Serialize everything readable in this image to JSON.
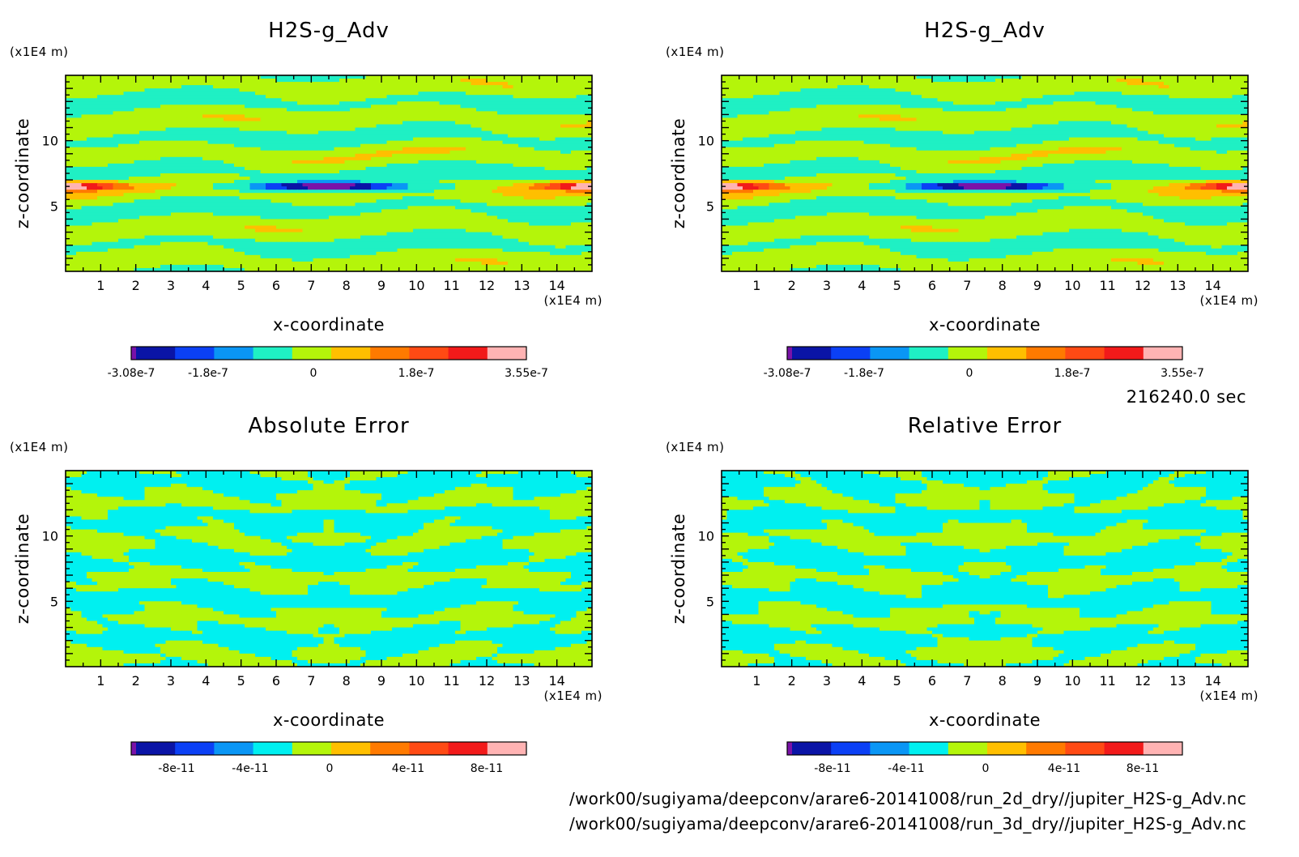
{
  "colors": {
    "vio": "#7a12a8",
    "navy": "#0a14a6",
    "blue": "#0b40f5",
    "sky": "#0a96f5",
    "cyan": "#00f0f0",
    "aqua": "#1ff0c4",
    "lime": "#b4f50a",
    "gold": "#ffbf00",
    "orange": "#ff7a00",
    "redor": "#ff4a14",
    "red": "#f21a1a",
    "pink": "#ffb3b3"
  },
  "time_label": "216240.0 sec",
  "files": [
    "/work00/sugiyama/deepconv/arare6-20141008/run_2d_dry//jupiter_H2S-g_Adv.nc",
    "/work00/sugiyama/deepconv/arare6-20141008/run_3d_dry//jupiter_H2S-g_Adv.nc"
  ],
  "chart_data": [
    {
      "type": "heatmap",
      "field": "adv",
      "title": "H2S-g_Adv",
      "xlabel": "x-coordinate",
      "ylabel": "z-coordinate",
      "x_unit": "(x1E4 m)",
      "y_unit": "(x1E4 m)",
      "xlim": [
        0,
        15
      ],
      "ylim": [
        0,
        15
      ],
      "xticks": [
        "1",
        "2",
        "3",
        "4",
        "5",
        "6",
        "7",
        "8",
        "9",
        "10",
        "11",
        "12",
        "13",
        "14"
      ],
      "yticks": [
        "5",
        "10"
      ],
      "colorbar": {
        "colors": [
          "#7a12a8",
          "#0a14a6",
          "#0b40f5",
          "#0a96f5",
          "#1ff0c4",
          "#b4f50a",
          "#ffbf00",
          "#ff7a00",
          "#ff4a14",
          "#f21a1a",
          "#ffb3b3"
        ],
        "labels": [
          "-3.08e-7",
          "-1.8e-7",
          "0",
          "1.8e-7",
          "3.55e-7"
        ],
        "range": [
          -3.08e-07,
          3.55e-07
        ]
      }
    },
    {
      "type": "heatmap",
      "field": "adv",
      "title": "H2S-g_Adv",
      "xlabel": "x-coordinate",
      "ylabel": "z-coordinate",
      "x_unit": "(x1E4 m)",
      "y_unit": "(x1E4 m)",
      "xlim": [
        0,
        15
      ],
      "ylim": [
        0,
        15
      ],
      "xticks": [
        "1",
        "2",
        "3",
        "4",
        "5",
        "6",
        "7",
        "8",
        "9",
        "10",
        "11",
        "12",
        "13",
        "14"
      ],
      "yticks": [
        "5",
        "10"
      ],
      "colorbar": {
        "colors": [
          "#7a12a8",
          "#0a14a6",
          "#0b40f5",
          "#0a96f5",
          "#1ff0c4",
          "#b4f50a",
          "#ffbf00",
          "#ff7a00",
          "#ff4a14",
          "#f21a1a",
          "#ffb3b3"
        ],
        "labels": [
          "-3.08e-7",
          "-1.8e-7",
          "0",
          "1.8e-7",
          "3.55e-7"
        ],
        "range": [
          -3.08e-07,
          3.55e-07
        ]
      }
    },
    {
      "type": "heatmap",
      "field": "abserr",
      "title": "Absolute Error",
      "xlabel": "x-coordinate",
      "ylabel": "z-coordinate",
      "x_unit": "(x1E4 m)",
      "y_unit": "(x1E4 m)",
      "xlim": [
        0,
        15
      ],
      "ylim": [
        0,
        15
      ],
      "xticks": [
        "1",
        "2",
        "3",
        "4",
        "5",
        "6",
        "7",
        "8",
        "9",
        "10",
        "11",
        "12",
        "13",
        "14"
      ],
      "yticks": [
        "5",
        "10"
      ],
      "colorbar": {
        "colors": [
          "#7a12a8",
          "#0a14a6",
          "#0b40f5",
          "#0a96f5",
          "#00f0f0",
          "#b4f50a",
          "#ffbf00",
          "#ff7a00",
          "#ff4a14",
          "#f21a1a",
          "#ffb3b3"
        ],
        "labels": [
          "-8e-11",
          "-4e-11",
          "0",
          "4e-11",
          "8e-11"
        ],
        "range": [
          -1e-10,
          1e-10
        ]
      }
    },
    {
      "type": "heatmap",
      "field": "relerr",
      "title": "Relative Error",
      "xlabel": "x-coordinate",
      "ylabel": "z-coordinate",
      "x_unit": "(x1E4 m)",
      "y_unit": "(x1E4 m)",
      "xlim": [
        0,
        15
      ],
      "ylim": [
        0,
        15
      ],
      "xticks": [
        "1",
        "2",
        "3",
        "4",
        "5",
        "6",
        "7",
        "8",
        "9",
        "10",
        "11",
        "12",
        "13",
        "14"
      ],
      "yticks": [
        "5",
        "10"
      ],
      "colorbar": {
        "colors": [
          "#7a12a8",
          "#0a14a6",
          "#0b40f5",
          "#0a96f5",
          "#00f0f0",
          "#b4f50a",
          "#ffbf00",
          "#ff7a00",
          "#ff4a14",
          "#f21a1a",
          "#ffb3b3"
        ],
        "labels": [
          "-8e-11",
          "-4e-11",
          "0",
          "4e-11",
          "8e-11"
        ],
        "range": [
          -1e-10,
          1e-10
        ]
      }
    }
  ]
}
